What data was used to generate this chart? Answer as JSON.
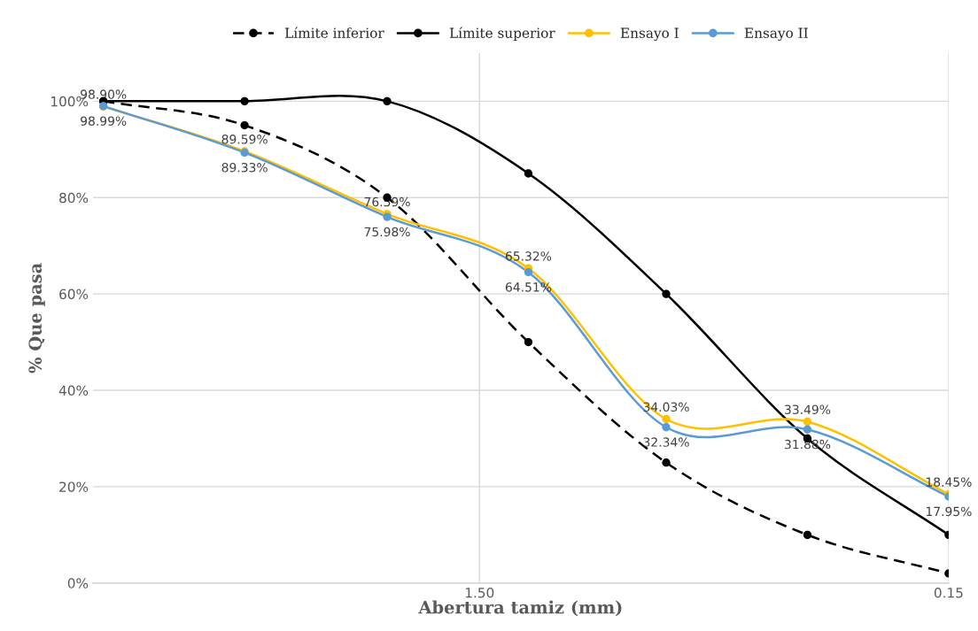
{
  "chart_data": {
    "type": "line",
    "xlabel": "Abertura tamiz (mm)",
    "ylabel": "% Que pasa",
    "x": [
      9.5,
      4.75,
      2.36,
      1.18,
      0.6,
      0.3,
      0.15
    ],
    "series": [
      {
        "name": "Límite inferior",
        "color": "#000000",
        "line_style": "dashed",
        "values": [
          100,
          95,
          80,
          50,
          25,
          10,
          2
        ]
      },
      {
        "name": "Límite superior",
        "color": "#000000",
        "line_style": "solid",
        "values": [
          100,
          100,
          100,
          85,
          60,
          30,
          10
        ]
      },
      {
        "name": "Ensayo I",
        "color": "#ffc000",
        "line_style": "solid",
        "values": [
          98.9,
          89.59,
          76.59,
          65.32,
          34.03,
          33.49,
          18.45
        ],
        "value_labels": [
          "98.90%",
          "89.59%",
          "76.59%",
          "65.32%",
          "34.03%",
          "33.49%",
          "18.45%"
        ]
      },
      {
        "name": "Ensayo II",
        "color": "#5b9bd5",
        "line_style": "solid",
        "values": [
          98.99,
          89.33,
          75.98,
          64.51,
          32.34,
          31.88,
          17.95
        ],
        "value_labels": [
          "98.99%",
          "89.33%",
          "75.98%",
          "64.51%",
          "32.34%",
          "31.88%",
          "17.95%"
        ]
      }
    ],
    "log": "x",
    "xlim": [
      10,
      0.15
    ],
    "xticks": [
      {
        "value": 1.5,
        "label": "1.50"
      },
      {
        "value": 0.15,
        "label": "0.15"
      }
    ],
    "ylim": [
      0,
      110
    ],
    "yticks": [
      {
        "value": 0,
        "label": "0%"
      },
      {
        "value": 20,
        "label": "20%"
      },
      {
        "value": 40,
        "label": "40%"
      },
      {
        "value": 60,
        "label": "60%"
      },
      {
        "value": 80,
        "label": "80%"
      },
      {
        "value": 100,
        "label": "100%"
      }
    ],
    "grid": true,
    "legend": "top",
    "marker": "circle"
  }
}
